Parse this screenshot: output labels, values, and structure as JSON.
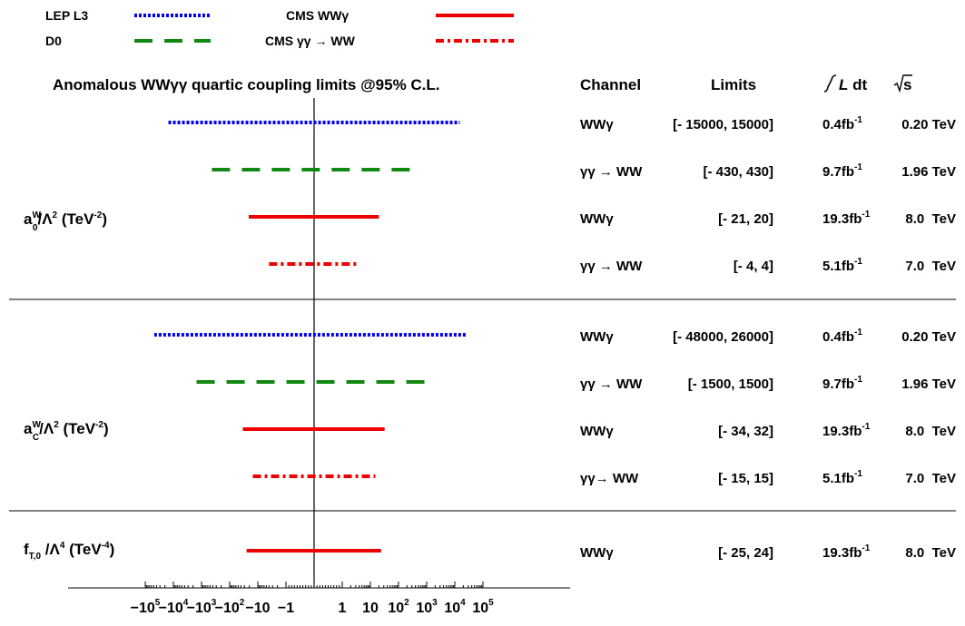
{
  "chart_data": {
    "type": "interval",
    "title": "Anomalous WWγγ quartic coupling limits @95% C.L.",
    "xscale": "symmetric-log",
    "xlim": [
      -100000,
      100000
    ],
    "xticks": [
      {
        "value": -100000,
        "base": "−10",
        "exp": "5"
      },
      {
        "value": -10000,
        "base": "−10",
        "exp": "4"
      },
      {
        "value": -1000,
        "base": "−10",
        "exp": "3"
      },
      {
        "value": -100,
        "base": "−10",
        "exp": "2"
      },
      {
        "value": -10,
        "base": "−10",
        "exp": ""
      },
      {
        "value": -1,
        "base": "−1",
        "exp": ""
      },
      {
        "value": 1,
        "base": "1",
        "exp": ""
      },
      {
        "value": 10,
        "base": "10",
        "exp": ""
      },
      {
        "value": 100,
        "base": "10",
        "exp": "2"
      },
      {
        "value": 1000,
        "base": "10",
        "exp": "3"
      },
      {
        "value": 10000,
        "base": "10",
        "exp": "4"
      },
      {
        "value": 100000,
        "base": "10",
        "exp": "5"
      }
    ],
    "legend": [
      {
        "label": "LEP L3",
        "color": "#0000ee",
        "style": "dotted"
      },
      {
        "label": "D0",
        "color": "#118811",
        "style": "dashed"
      },
      {
        "label": "CMS WWγ",
        "color": "#ee0000",
        "style": "solid"
      },
      {
        "label": "CMS γγ → WW",
        "color": "#ee0000",
        "style": "dashdot"
      }
    ],
    "columns": {
      "channel": "Channel",
      "limits": "Limits",
      "lumi": "L dt",
      "energy": "s"
    },
    "groups": [
      {
        "label": {
          "base": "a",
          "sup": "W",
          "sub": "0",
          "mid": "/Λ",
          "pow": "2",
          "unit": " (TeV",
          "unitexp": "-2",
          "close": ")"
        },
        "rows": [
          {
            "experiment": "LEP L3",
            "low": -15000,
            "high": 15000,
            "channel": "WWγ",
            "limits": "[- 15000, 15000]",
            "lumi": "0.4fb",
            "lumi_exp": "-1",
            "energy": "0.20 TeV"
          },
          {
            "experiment": "D0",
            "low": -430,
            "high": 430,
            "channel": "γγ → WW",
            "limits": "[- 430, 430]",
            "lumi": "9.7fb",
            "lumi_exp": "-1",
            "energy": "1.96 TeV"
          },
          {
            "experiment": "CMS WWγ",
            "low": -21,
            "high": 20,
            "channel": "WWγ",
            "limits": "[- 21, 20]",
            "lumi": "19.3fb",
            "lumi_exp": "-1",
            "energy": "8.0  TeV"
          },
          {
            "experiment": "CMS γγ → WW",
            "low": -4,
            "high": 4,
            "channel": "γγ → WW",
            "limits": "[- 4, 4]",
            "lumi": "5.1fb",
            "lumi_exp": "-1",
            "energy": "7.0  TeV"
          }
        ]
      },
      {
        "label": {
          "base": "a",
          "sup": "W",
          "sub": "C",
          "mid": "/Λ",
          "pow": "2",
          "unit": " (TeV",
          "unitexp": "-2",
          "close": ")"
        },
        "rows": [
          {
            "experiment": "LEP L3",
            "low": -48000,
            "high": 26000,
            "channel": "WWγ",
            "limits": "[- 48000, 26000]",
            "lumi": "0.4fb",
            "lumi_exp": "-1",
            "energy": "0.20 TeV"
          },
          {
            "experiment": "D0",
            "low": -1500,
            "high": 1500,
            "channel": "γγ → WW",
            "limits": "[- 1500, 1500]",
            "lumi": "9.7fb",
            "lumi_exp": "-1",
            "energy": "1.96 TeV"
          },
          {
            "experiment": "CMS WWγ",
            "low": -34,
            "high": 32,
            "channel": "WWγ",
            "limits": "[- 34, 32]",
            "lumi": "19.3fb",
            "lumi_exp": "-1",
            "energy": "8.0  TeV"
          },
          {
            "experiment": "CMS γγ → WW",
            "low": -15,
            "high": 15,
            "channel": "γγ→ WW",
            "limits": "[- 15, 15]",
            "lumi": "5.1fb",
            "lumi_exp": "-1",
            "energy": "7.0  TeV"
          }
        ]
      },
      {
        "label": {
          "base": "f",
          "sup": "",
          "sub": "T,0",
          "mid": " /Λ",
          "pow": "4",
          "unit": " (TeV",
          "unitexp": "-4",
          "close": ")"
        },
        "rows": [
          {
            "experiment": "CMS WWγ",
            "low": -25,
            "high": 24,
            "channel": "WWγ",
            "limits": "[- 25, 24]",
            "lumi": "19.3fb",
            "lumi_exp": "-1",
            "energy": "8.0  TeV"
          }
        ]
      }
    ]
  }
}
